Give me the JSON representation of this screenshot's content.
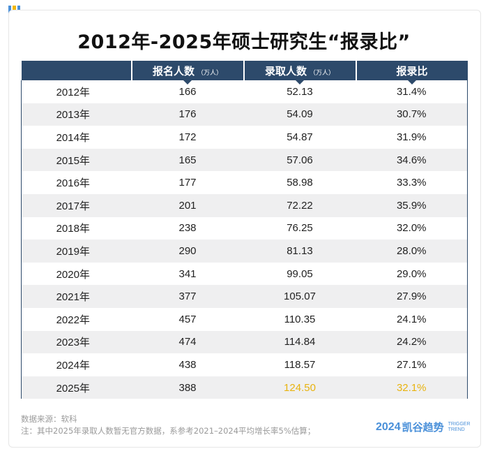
{
  "title": "2012年-2025年硕士研究生“报录比”",
  "headers": [
    {
      "label": "",
      "unit": ""
    },
    {
      "label": "报名人数",
      "unit": "（万人）"
    },
    {
      "label": "录取人数",
      "unit": "（万人）"
    },
    {
      "label": "报录比",
      "unit": ""
    }
  ],
  "rows": [
    {
      "year": "2012年",
      "applicants": "166",
      "admitted": "52.13",
      "ratio": "31.4%"
    },
    {
      "year": "2013年",
      "applicants": "176",
      "admitted": "54.09",
      "ratio": "30.7%"
    },
    {
      "year": "2014年",
      "applicants": "172",
      "admitted": "54.87",
      "ratio": "31.9%"
    },
    {
      "year": "2015年",
      "applicants": "165",
      "admitted": "57.06",
      "ratio": "34.6%"
    },
    {
      "year": "2016年",
      "applicants": "177",
      "admitted": "58.98",
      "ratio": "33.3%"
    },
    {
      "year": "2017年",
      "applicants": "201",
      "admitted": "72.22",
      "ratio": "35.9%"
    },
    {
      "year": "2018年",
      "applicants": "238",
      "admitted": "76.25",
      "ratio": "32.0%"
    },
    {
      "year": "2019年",
      "applicants": "290",
      "admitted": "81.13",
      "ratio": "28.0%"
    },
    {
      "year": "2020年",
      "applicants": "341",
      "admitted": "99.05",
      "ratio": "29.0%"
    },
    {
      "year": "2021年",
      "applicants": "377",
      "admitted": "105.07",
      "ratio": "27.9%"
    },
    {
      "year": "2022年",
      "applicants": "457",
      "admitted": "110.35",
      "ratio": "24.1%"
    },
    {
      "year": "2023年",
      "applicants": "474",
      "admitted": "114.84",
      "ratio": "24.2%"
    },
    {
      "year": "2024年",
      "applicants": "438",
      "admitted": "118.57",
      "ratio": "27.1%"
    },
    {
      "year": "2025年",
      "applicants": "388",
      "admitted": "124.50",
      "ratio": "32.1%",
      "estimated": true
    }
  ],
  "source": "数据来源：软科",
  "note": "注：其中2025年录取人数暂无官方数据，系参考2021–2024平均增长率5%估算；",
  "logo": {
    "year": "2024",
    "brand": "凯谷趋势",
    "en_line1": "TRIGGER",
    "en_line2": "TREND"
  },
  "colors": {
    "header_bg": "#2d4a6b",
    "highlight": "#e8b30f",
    "stripe": "#efeff0",
    "brand": "#4a90d9"
  }
}
